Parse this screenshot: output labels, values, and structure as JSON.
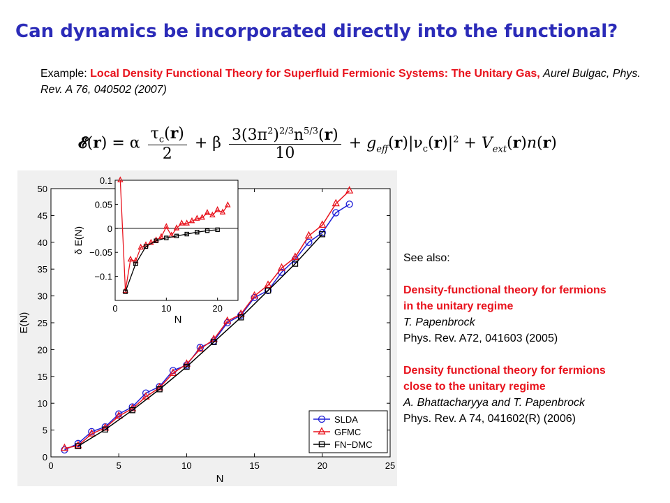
{
  "title": "Can dynamics be incorporated directly into the functional?",
  "reference": {
    "prefix": "Example: ",
    "paper_title": "Local Density Functional Theory for Superfluid Fermionic Systems: The Unitary Gas,",
    "citation": "Aurel Bulgac, Phys. Rev. A 76, 040502 (2007)"
  },
  "formula_alt": "E(r) = α τc(r)/2 + β 3(3π²)^(2/3) n^(5/3)(r)/10 + g_eff(r)|νc(r)|² + V_ext(r)n(r)",
  "see_also": {
    "heading": "See also:",
    "refs": [
      {
        "title_line1": "Density-functional theory for fermions",
        "title_line2": "in the unitary regime",
        "authors": "T. Papenbrock",
        "journal": "Phys. Rev. A72, 041603 (2005)"
      },
      {
        "title_line1": "Density functional theory for fermions",
        "title_line2": "close to the unitary regime",
        "authors": "A. Bhattacharyya and T. Papenbrock",
        "journal": "Phys. Rev. A 74, 041602(R) (2006)"
      }
    ]
  },
  "colors": {
    "title": "#2b2bb8",
    "reference_red": "#e8131d",
    "slda": "#1f1fd6",
    "gfmc": "#e8131d",
    "fndmc": "#000000"
  },
  "chart_data": [
    {
      "type": "line",
      "xlabel": "N",
      "ylabel": "E(N)",
      "xlim": [
        0,
        25
      ],
      "ylim": [
        0,
        50
      ],
      "xticks": [
        0,
        5,
        10,
        15,
        20,
        25
      ],
      "yticks": [
        0,
        5,
        10,
        15,
        20,
        25,
        30,
        35,
        40,
        45,
        50
      ],
      "legend_position": "bottom-right",
      "series": [
        {
          "name": "SLDA",
          "marker": "circle",
          "x": [
            1,
            2,
            3,
            4,
            5,
            6,
            7,
            8,
            9,
            10,
            11,
            12,
            13,
            14,
            15,
            16,
            17,
            18,
            19,
            20,
            21,
            22
          ],
          "y": [
            1.3,
            2.5,
            4.7,
            5.6,
            8.0,
            9.3,
            11.9,
            13.1,
            16.1,
            17.1,
            20.4,
            21.6,
            25.0,
            26.4,
            29.7,
            31.0,
            34.4,
            36.8,
            40.0,
            41.8,
            45.5,
            47.1
          ]
        },
        {
          "name": "GFMC",
          "marker": "triangle",
          "x": [
            1,
            2,
            3,
            4,
            5,
            6,
            7,
            8,
            9,
            10,
            11,
            12,
            13,
            14,
            15,
            16,
            17,
            18,
            19,
            20,
            21,
            22
          ],
          "y": [
            1.6,
            2.1,
            4.3,
            5.4,
            7.6,
            9.0,
            11.2,
            12.9,
            15.6,
            17.3,
            20.1,
            21.9,
            25.3,
            26.6,
            30.0,
            32.0,
            35.2,
            37.2,
            41.2,
            43.2,
            47.2,
            49.6
          ]
        },
        {
          "name": "FN−DMC",
          "marker": "square",
          "x": [
            2,
            4,
            6,
            8,
            10,
            12,
            14,
            16,
            18,
            20
          ],
          "y": [
            2.0,
            5.1,
            8.7,
            12.6,
            16.8,
            21.4,
            26.0,
            31.0,
            36.0,
            41.5
          ]
        }
      ]
    },
    {
      "type": "line",
      "xlabel": "N",
      "ylabel": "δ E(N)",
      "xlim": [
        0,
        24
      ],
      "ylim": [
        -0.15,
        0.1
      ],
      "xticks": [
        0,
        10,
        20
      ],
      "yticks": [
        0.1,
        0.05,
        0,
        -0.05,
        -0.1
      ],
      "yticklabels": [
        "0.1",
        "0.05",
        "0",
        "−0.05",
        "−0.1"
      ],
      "series": [
        {
          "marker": "triangle",
          "x": [
            1,
            2,
            3,
            4,
            5,
            6,
            7,
            8,
            9,
            10,
            11,
            12,
            13,
            14,
            15,
            16,
            17,
            18,
            19,
            20,
            21,
            22
          ],
          "y": [
            0.1,
            -0.13,
            -0.065,
            -0.068,
            -0.04,
            -0.035,
            -0.03,
            -0.025,
            -0.018,
            0.003,
            -0.015,
            0.0,
            0.01,
            0.01,
            0.015,
            0.02,
            0.022,
            0.032,
            0.027,
            0.038,
            0.033,
            0.048
          ]
        },
        {
          "marker": "square",
          "x": [
            2,
            4,
            6,
            8,
            10,
            12,
            14,
            16,
            18,
            20
          ],
          "y": [
            -0.132,
            -0.074,
            -0.038,
            -0.026,
            -0.02,
            -0.016,
            -0.012,
            -0.008,
            -0.005,
            -0.003
          ]
        }
      ]
    }
  ]
}
